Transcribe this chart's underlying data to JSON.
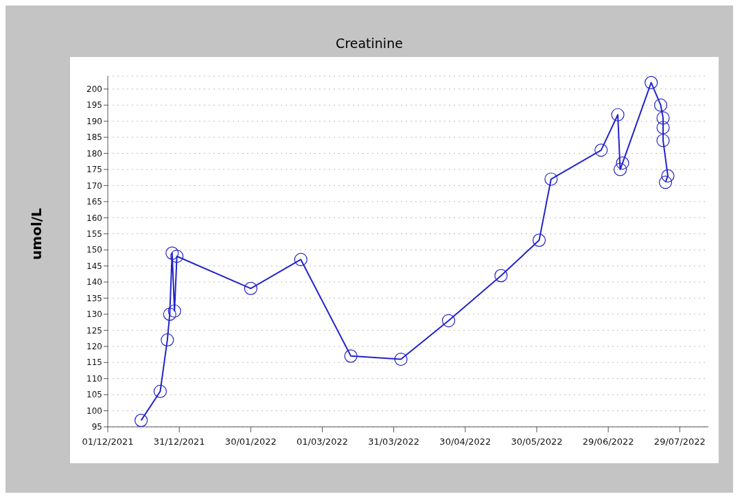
{
  "chart_data": {
    "type": "line",
    "title": "Creatinine",
    "ylabel": "umol/L",
    "x": [
      "2021-12-15",
      "2021-12-23",
      "2021-12-26",
      "2021-12-27",
      "2021-12-28",
      "2021-12-29",
      "2021-12-30",
      "2022-01-30",
      "2022-02-20",
      "2022-03-13",
      "2022-04-03",
      "2022-04-23",
      "2022-05-15",
      "2022-05-31",
      "2022-06-05",
      "2022-06-26",
      "2022-07-03",
      "2022-07-04",
      "2022-07-05",
      "2022-07-17",
      "2022-07-21",
      "2022-07-22",
      "2022-07-22",
      "2022-07-22",
      "2022-07-24",
      "2022-07-23"
    ],
    "series": [
      {
        "color": "#2222cc",
        "values": [
          97,
          106,
          122,
          130,
          149,
          131,
          148,
          138,
          147,
          117,
          116,
          128,
          142,
          153,
          172,
          181,
          192,
          175,
          177,
          202,
          195,
          191,
          188,
          184,
          173,
          171
        ]
      }
    ],
    "xlim": [
      "2021-12-01",
      "2022-08-10"
    ],
    "xticks": [
      {
        "value": "2021-12-01",
        "label": "01/12/2021"
      },
      {
        "value": "2021-12-31",
        "label": "31/12/2021"
      },
      {
        "value": "2022-01-30",
        "label": "30/01/2022"
      },
      {
        "value": "2022-03-01",
        "label": "01/03/2022"
      },
      {
        "value": "2022-03-31",
        "label": "31/03/2022"
      },
      {
        "value": "2022-04-30",
        "label": "30/04/2022"
      },
      {
        "value": "2022-05-30",
        "label": "30/05/2022"
      },
      {
        "value": "2022-06-29",
        "label": "29/06/2022"
      },
      {
        "value": "2022-07-29",
        "label": "29/07/2022"
      }
    ],
    "ylim": [
      95,
      204
    ],
    "yticks": [
      95,
      100,
      105,
      110,
      115,
      120,
      125,
      130,
      135,
      140,
      145,
      150,
      155,
      160,
      165,
      170,
      175,
      180,
      185,
      190,
      195,
      200
    ],
    "grid": "y",
    "marker": "circle",
    "line_style": "solid"
  }
}
